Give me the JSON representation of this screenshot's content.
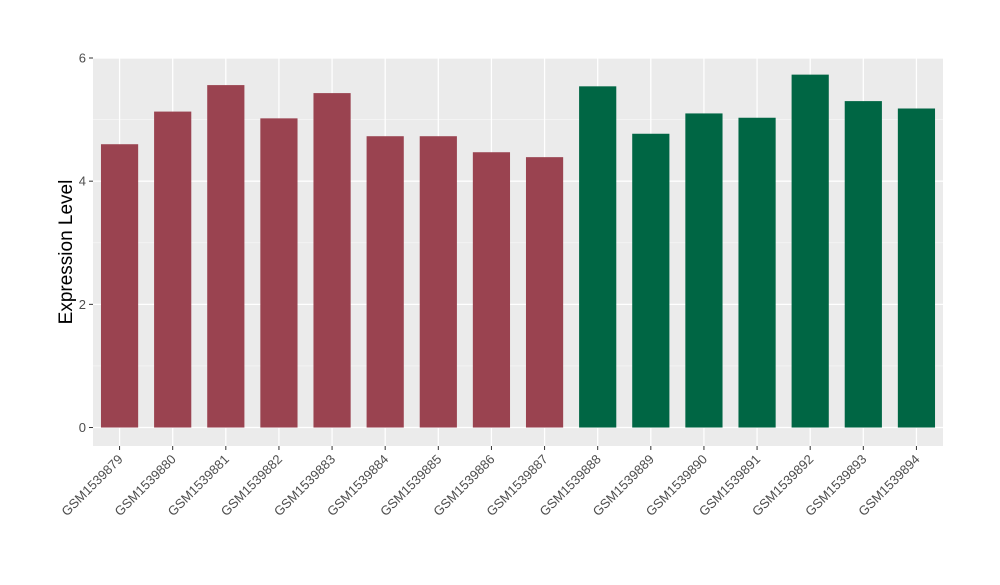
{
  "chart_data": {
    "type": "bar",
    "title": "",
    "xlabel": "",
    "ylabel": "Expression Level",
    "ylim": [
      -0.3,
      6.0
    ],
    "yticks": [
      0,
      2,
      4,
      6
    ],
    "grid": true,
    "legend": "none",
    "categories": [
      "GSM1539879",
      "GSM1539880",
      "GSM1539881",
      "GSM1539882",
      "GSM1539883",
      "GSM1539884",
      "GSM1539885",
      "GSM1539886",
      "GSM1539887",
      "GSM1539888",
      "GSM1539889",
      "GSM1539890",
      "GSM1539891",
      "GSM1539892",
      "GSM1539893",
      "GSM1539894"
    ],
    "values": [
      4.6,
      5.13,
      5.56,
      5.02,
      5.43,
      4.73,
      4.73,
      4.47,
      4.39,
      5.54,
      4.77,
      5.1,
      5.03,
      5.73,
      5.3,
      5.18
    ],
    "bar_colors": [
      "#9a4350",
      "#9a4350",
      "#9a4350",
      "#9a4350",
      "#9a4350",
      "#9a4350",
      "#9a4350",
      "#9a4350",
      "#9a4350",
      "#006644",
      "#006644",
      "#006644",
      "#006644",
      "#006644",
      "#006644",
      "#006644"
    ]
  },
  "colors": {
    "panel_background": "#ebebeb",
    "grid_major": "#ffffff",
    "grid_minor": "#f5f5f5",
    "axis_text": "#4d4d4d",
    "axis_title": "#000000"
  }
}
